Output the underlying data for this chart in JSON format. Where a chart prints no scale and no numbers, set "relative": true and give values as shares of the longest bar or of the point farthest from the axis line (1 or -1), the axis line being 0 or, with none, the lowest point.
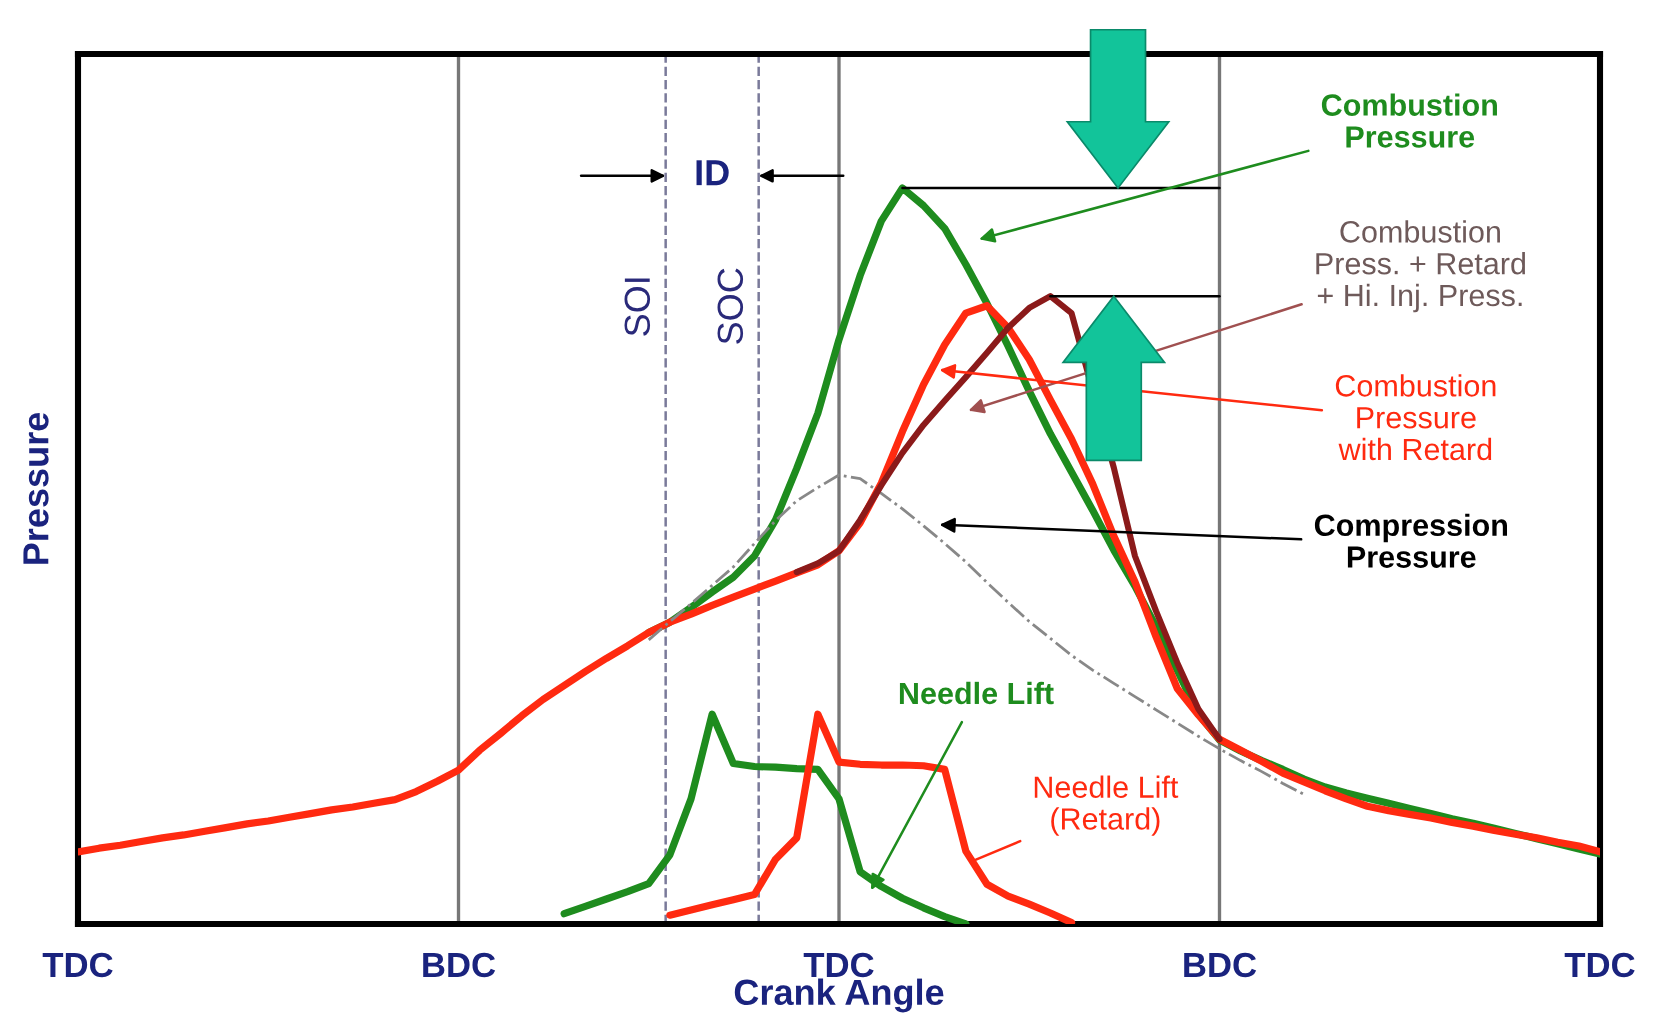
{
  "chart_data": {
    "type": "line",
    "relative": true,
    "xlabel": "Crank Angle",
    "ylabel": "Pressure",
    "categories": [
      "TDC",
      null,
      null,
      null,
      null,
      null,
      null,
      null,
      null,
      null,
      null,
      null,
      null,
      null,
      null,
      null,
      null,
      null,
      "BDC",
      null,
      null,
      null,
      null,
      null,
      null,
      null,
      null,
      null,
      null,
      null,
      null,
      null,
      null,
      null,
      null,
      null,
      "TDC",
      null,
      null,
      null,
      null,
      null,
      null,
      null,
      null,
      null,
      null,
      null,
      null,
      null,
      null,
      null,
      null,
      null,
      "BDC",
      null,
      null,
      null,
      null,
      null,
      null,
      null,
      null,
      null,
      null,
      null,
      null,
      null,
      null,
      null,
      null,
      null,
      "TDC"
    ],
    "grid": "x",
    "line_style": "solid",
    "marker": "none",
    "series": [
      {
        "color": "#1e8c1e",
        "values": [
          null,
          null,
          null,
          null,
          null,
          null,
          null,
          null,
          null,
          null,
          null,
          null,
          null,
          null,
          null,
          null,
          null,
          null,
          null,
          null,
          null,
          null,
          null,
          null,
          null,
          null,
          null,
          0.396,
          0.41,
          0.43,
          0.451,
          0.471,
          0.5,
          0.549,
          0.619,
          0.694,
          0.794,
          0.881,
          0.955,
          1.0,
          0.976,
          0.945,
          0.896,
          0.843,
          0.785,
          0.724,
          0.666,
          0.614,
          0.562,
          0.508,
          0.459,
          0.404,
          0.345,
          0.285,
          0.25,
          0.235,
          0.222,
          0.21,
          0.197,
          0.186,
          0.178,
          0.171,
          0.164,
          0.157,
          0.15,
          0.143,
          0.137,
          0.13,
          0.123,
          0.116,
          0.109,
          0.102,
          0.095
        ]
      },
      {
        "color": "#8b1a1a",
        "values": [
          null,
          null,
          null,
          null,
          null,
          null,
          null,
          null,
          null,
          null,
          null,
          null,
          null,
          null,
          null,
          null,
          null,
          null,
          null,
          null,
          null,
          null,
          null,
          null,
          null,
          null,
          null,
          null,
          null,
          null,
          null,
          null,
          null,
          null,
          0.478,
          0.49,
          0.507,
          0.549,
          0.596,
          0.64,
          0.678,
          0.711,
          0.743,
          0.776,
          0.81,
          0.837,
          0.853,
          0.83,
          null,
          0.62,
          0.5,
          0.425,
          0.355,
          0.292,
          0.251,
          null,
          null,
          null,
          null,
          null,
          null,
          null,
          null,
          null,
          null,
          null,
          null,
          null,
          null,
          null,
          null,
          null,
          null
        ]
      },
      {
        "color": "#ff2a10",
        "values": [
          0.098,
          0.103,
          0.107,
          0.112,
          0.117,
          0.121,
          0.126,
          0.131,
          0.136,
          0.14,
          0.145,
          0.15,
          0.155,
          0.159,
          0.164,
          0.169,
          0.18,
          0.194,
          0.209,
          0.236,
          0.259,
          0.283,
          0.305,
          0.324,
          0.343,
          0.361,
          0.378,
          0.396,
          0.41,
          0.421,
          0.433,
          0.444,
          0.455,
          0.466,
          0.477,
          0.488,
          0.507,
          0.545,
          0.599,
          0.669,
          0.733,
          0.787,
          0.83,
          0.84,
          0.81,
          0.767,
          0.712,
          0.659,
          0.598,
          0.527,
          0.465,
          0.39,
          0.32,
          0.284,
          0.251,
          0.236,
          0.221,
          0.205,
          0.193,
          0.181,
          0.17,
          0.16,
          0.154,
          0.149,
          0.144,
          0.138,
          0.133,
          0.127,
          0.122,
          0.117,
          0.111,
          0.106,
          0.098
        ]
      },
      {
        "color": "#888888",
        "line_style": "dashed",
        "values": [
          null,
          null,
          null,
          null,
          null,
          null,
          null,
          null,
          null,
          null,
          null,
          null,
          null,
          null,
          null,
          null,
          null,
          null,
          null,
          null,
          null,
          null,
          null,
          null,
          null,
          null,
          null,
          0.386,
          0.411,
          0.435,
          0.46,
          0.485,
          0.517,
          0.548,
          0.575,
          0.593,
          0.61,
          0.605,
          0.585,
          0.564,
          0.541,
          0.517,
          0.492,
          0.464,
          0.437,
          0.411,
          0.388,
          0.365,
          0.345,
          0.327,
          0.309,
          0.291,
          0.273,
          0.255,
          0.238,
          0.222,
          0.207,
          0.191,
          0.176,
          null,
          null,
          null,
          null,
          null,
          null,
          null,
          null,
          null,
          null,
          null,
          null,
          null,
          null
        ]
      },
      {
        "color": "#1e8c1e",
        "values": [
          null,
          null,
          null,
          null,
          null,
          null,
          null,
          null,
          null,
          null,
          null,
          null,
          null,
          null,
          null,
          null,
          null,
          null,
          null,
          null,
          null,
          null,
          null,
          0.014,
          0.024,
          0.034,
          0.044,
          0.055,
          0.094,
          0.17,
          0.285,
          0.218,
          0.214,
          0.213,
          0.211,
          0.21,
          0.17,
          0.071,
          0.051,
          0.035,
          0.022,
          0.01,
          0.0,
          null,
          null,
          null,
          null,
          null,
          null,
          null,
          null,
          null,
          null,
          null,
          null,
          null,
          null,
          null,
          null,
          null,
          null,
          null,
          null,
          null,
          null,
          null,
          null,
          null,
          null,
          null,
          null,
          null,
          null
        ]
      },
      {
        "color": "#ff2a10",
        "values": [
          null,
          null,
          null,
          null,
          null,
          null,
          null,
          null,
          null,
          null,
          null,
          null,
          null,
          null,
          null,
          null,
          null,
          null,
          null,
          null,
          null,
          null,
          null,
          null,
          null,
          null,
          null,
          null,
          0.012,
          0.019,
          0.026,
          0.033,
          0.04,
          0.088,
          0.117,
          0.285,
          0.22,
          0.217,
          0.216,
          0.216,
          0.215,
          0.21,
          0.099,
          0.054,
          0.038,
          0.027,
          0.015,
          0.002,
          null,
          null,
          null,
          null,
          null,
          null,
          null,
          null,
          null,
          null,
          null,
          null,
          null,
          null,
          null,
          null,
          null,
          null,
          null,
          null,
          null,
          null,
          null,
          null,
          null
        ]
      }
    ],
    "annotations": [
      "Combustion\nPressure",
      "Combustion\nPress. + Retard\n+ Hi. Inj. Press.",
      "Combustion\nPressure\nwith Retard",
      "Compression\nPressure",
      "Needle Lift",
      "Needle Lift\n(Retard)",
      "ID",
      "SOI",
      "SOC"
    ]
  }
}
